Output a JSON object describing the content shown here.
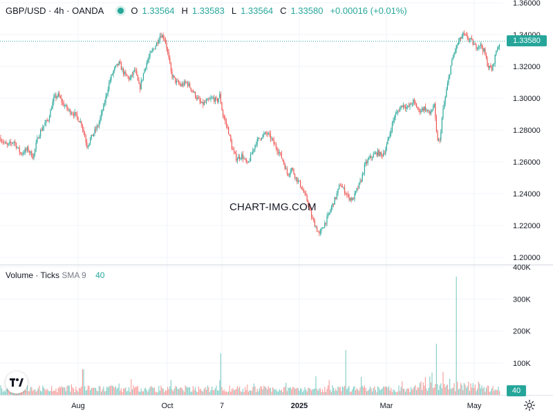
{
  "header": {
    "symbol": "GBP/USD · 4h · OANDA",
    "open_label": "O",
    "open": "1.33564",
    "high_label": "H",
    "high": "1.33583",
    "low_label": "L",
    "low": "1.33564",
    "close_label": "C",
    "close": "1.33580",
    "change": "+0.00016 (+0.01%)"
  },
  "volume_header": {
    "title": "Volume · Ticks",
    "sma_label": "SMA 9",
    "value": "40"
  },
  "watermark": "CHART-IMG.COM",
  "price_badge": "1.33580",
  "volume_badge": "40",
  "colors": {
    "up": "#26a69a",
    "down": "#ef5350",
    "grid": "#f0f3fa",
    "price_line": "#26a69a"
  },
  "icons": {
    "logo": "tradingview-logo-icon",
    "settings": "gear-icon"
  },
  "chart_data": {
    "type": "candlestick",
    "symbol": "GBP/USD",
    "interval": "4h",
    "price_axis": {
      "ticks": [
        "1.36000",
        "1.34000",
        "1.32000",
        "1.30000",
        "1.28000",
        "1.26000",
        "1.24000",
        "1.22000",
        "1.20000"
      ],
      "ylim": [
        1.197,
        1.36
      ]
    },
    "volume_axis": {
      "ticks": [
        "400K",
        "300K",
        "200K",
        "100K"
      ],
      "ylim": [
        0,
        400000
      ]
    },
    "x_axis": {
      "labels": [
        "Aug",
        "Oct",
        "7",
        "2025",
        "Mar",
        "May"
      ]
    },
    "last_price": 1.3358,
    "path": [
      [
        0,
        1.275
      ],
      [
        10,
        1.27
      ],
      [
        20,
        1.273
      ],
      [
        30,
        1.265
      ],
      [
        40,
        1.268
      ],
      [
        48,
        1.263
      ],
      [
        55,
        1.276
      ],
      [
        62,
        1.282
      ],
      [
        70,
        1.287
      ],
      [
        78,
        1.3
      ],
      [
        84,
        1.302
      ],
      [
        92,
        1.296
      ],
      [
        100,
        1.292
      ],
      [
        108,
        1.29
      ],
      [
        118,
        1.284
      ],
      [
        126,
        1.27
      ],
      [
        134,
        1.277
      ],
      [
        142,
        1.283
      ],
      [
        150,
        1.295
      ],
      [
        158,
        1.31
      ],
      [
        165,
        1.318
      ],
      [
        172,
        1.322
      ],
      [
        180,
        1.315
      ],
      [
        188,
        1.312
      ],
      [
        195,
        1.318
      ],
      [
        202,
        1.306
      ],
      [
        210,
        1.32
      ],
      [
        218,
        1.328
      ],
      [
        226,
        1.334
      ],
      [
        232,
        1.34
      ],
      [
        238,
        1.338
      ],
      [
        242,
        1.33
      ],
      [
        248,
        1.315
      ],
      [
        255,
        1.31
      ],
      [
        262,
        1.308
      ],
      [
        270,
        1.31
      ],
      [
        278,
        1.305
      ],
      [
        285,
        1.3
      ],
      [
        292,
        1.296
      ],
      [
        300,
        1.298
      ],
      [
        308,
        1.3
      ],
      [
        314,
        1.298
      ],
      [
        318,
        1.302
      ],
      [
        322,
        1.29
      ],
      [
        330,
        1.28
      ],
      [
        336,
        1.268
      ],
      [
        342,
        1.262
      ],
      [
        350,
        1.264
      ],
      [
        358,
        1.258
      ],
      [
        364,
        1.265
      ],
      [
        370,
        1.272
      ],
      [
        378,
        1.276
      ],
      [
        386,
        1.278
      ],
      [
        392,
        1.275
      ],
      [
        398,
        1.27
      ],
      [
        404,
        1.266
      ],
      [
        410,
        1.26
      ],
      [
        416,
        1.252
      ],
      [
        422,
        1.256
      ],
      [
        428,
        1.25
      ],
      [
        434,
        1.246
      ],
      [
        440,
        1.24
      ],
      [
        446,
        1.234
      ],
      [
        450,
        1.226
      ],
      [
        456,
        1.22
      ],
      [
        462,
        1.214
      ],
      [
        468,
        1.22
      ],
      [
        474,
        1.225
      ],
      [
        480,
        1.232
      ],
      [
        486,
        1.238
      ],
      [
        492,
        1.246
      ],
      [
        498,
        1.242
      ],
      [
        504,
        1.238
      ],
      [
        510,
        1.236
      ],
      [
        516,
        1.242
      ],
      [
        522,
        1.248
      ],
      [
        528,
        1.258
      ],
      [
        534,
        1.262
      ],
      [
        540,
        1.264
      ],
      [
        546,
        1.266
      ],
      [
        552,
        1.264
      ],
      [
        558,
        1.268
      ],
      [
        564,
        1.278
      ],
      [
        570,
        1.288
      ],
      [
        576,
        1.292
      ],
      [
        582,
        1.296
      ],
      [
        590,
        1.294
      ],
      [
        598,
        1.298
      ],
      [
        606,
        1.292
      ],
      [
        614,
        1.294
      ],
      [
        622,
        1.29
      ],
      [
        628,
        1.296
      ],
      [
        632,
        1.275
      ],
      [
        636,
        1.272
      ],
      [
        640,
        1.29
      ],
      [
        646,
        1.305
      ],
      [
        652,
        1.32
      ],
      [
        658,
        1.33
      ],
      [
        664,
        1.336
      ],
      [
        670,
        1.34
      ],
      [
        676,
        1.338
      ],
      [
        682,
        1.336
      ],
      [
        688,
        1.332
      ],
      [
        694,
        1.334
      ],
      [
        700,
        1.33
      ],
      [
        706,
        1.32
      ],
      [
        712,
        1.318
      ],
      [
        718,
        1.33
      ],
      [
        724,
        1.3358
      ]
    ],
    "volume_spikes": [
      {
        "x": 120,
        "value": 80000
      },
      {
        "x": 320,
        "value": 130000
      },
      {
        "x": 500,
        "value": 140000
      },
      {
        "x": 632,
        "value": 160000
      },
      {
        "x": 660,
        "value": 370000
      }
    ]
  }
}
